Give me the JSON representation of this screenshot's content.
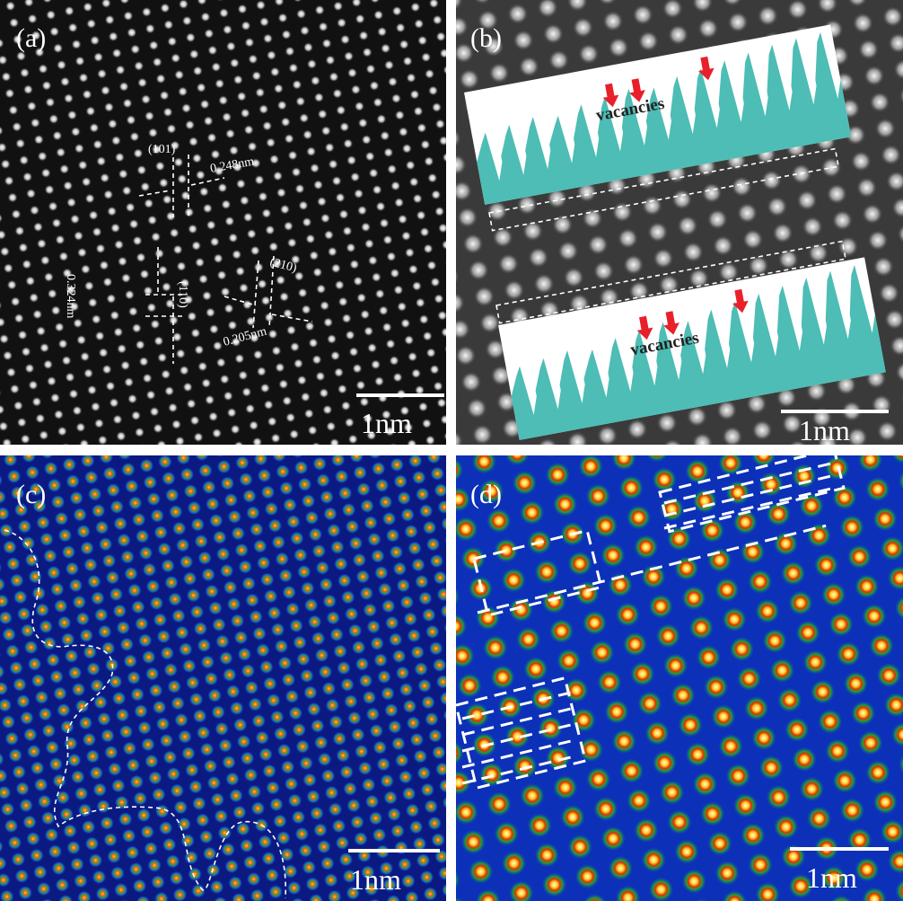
{
  "panels": [
    {
      "label": "(a)",
      "scale_bar": "1nm",
      "annotations": [
        {
          "plane": "(101)",
          "spacing": "0.248nm"
        },
        {
          "plane": "(110)",
          "spacing": "0.324nm"
        },
        {
          "plane": "(210)",
          "spacing": "0.205nm"
        }
      ]
    },
    {
      "label": "(b)",
      "scale_bar": "1nm",
      "annotations": [
        "vacancies",
        "vacancies"
      ]
    },
    {
      "label": "(c)",
      "scale_bar": "1nm"
    },
    {
      "label": "(d)",
      "scale_bar": "1nm"
    }
  ]
}
